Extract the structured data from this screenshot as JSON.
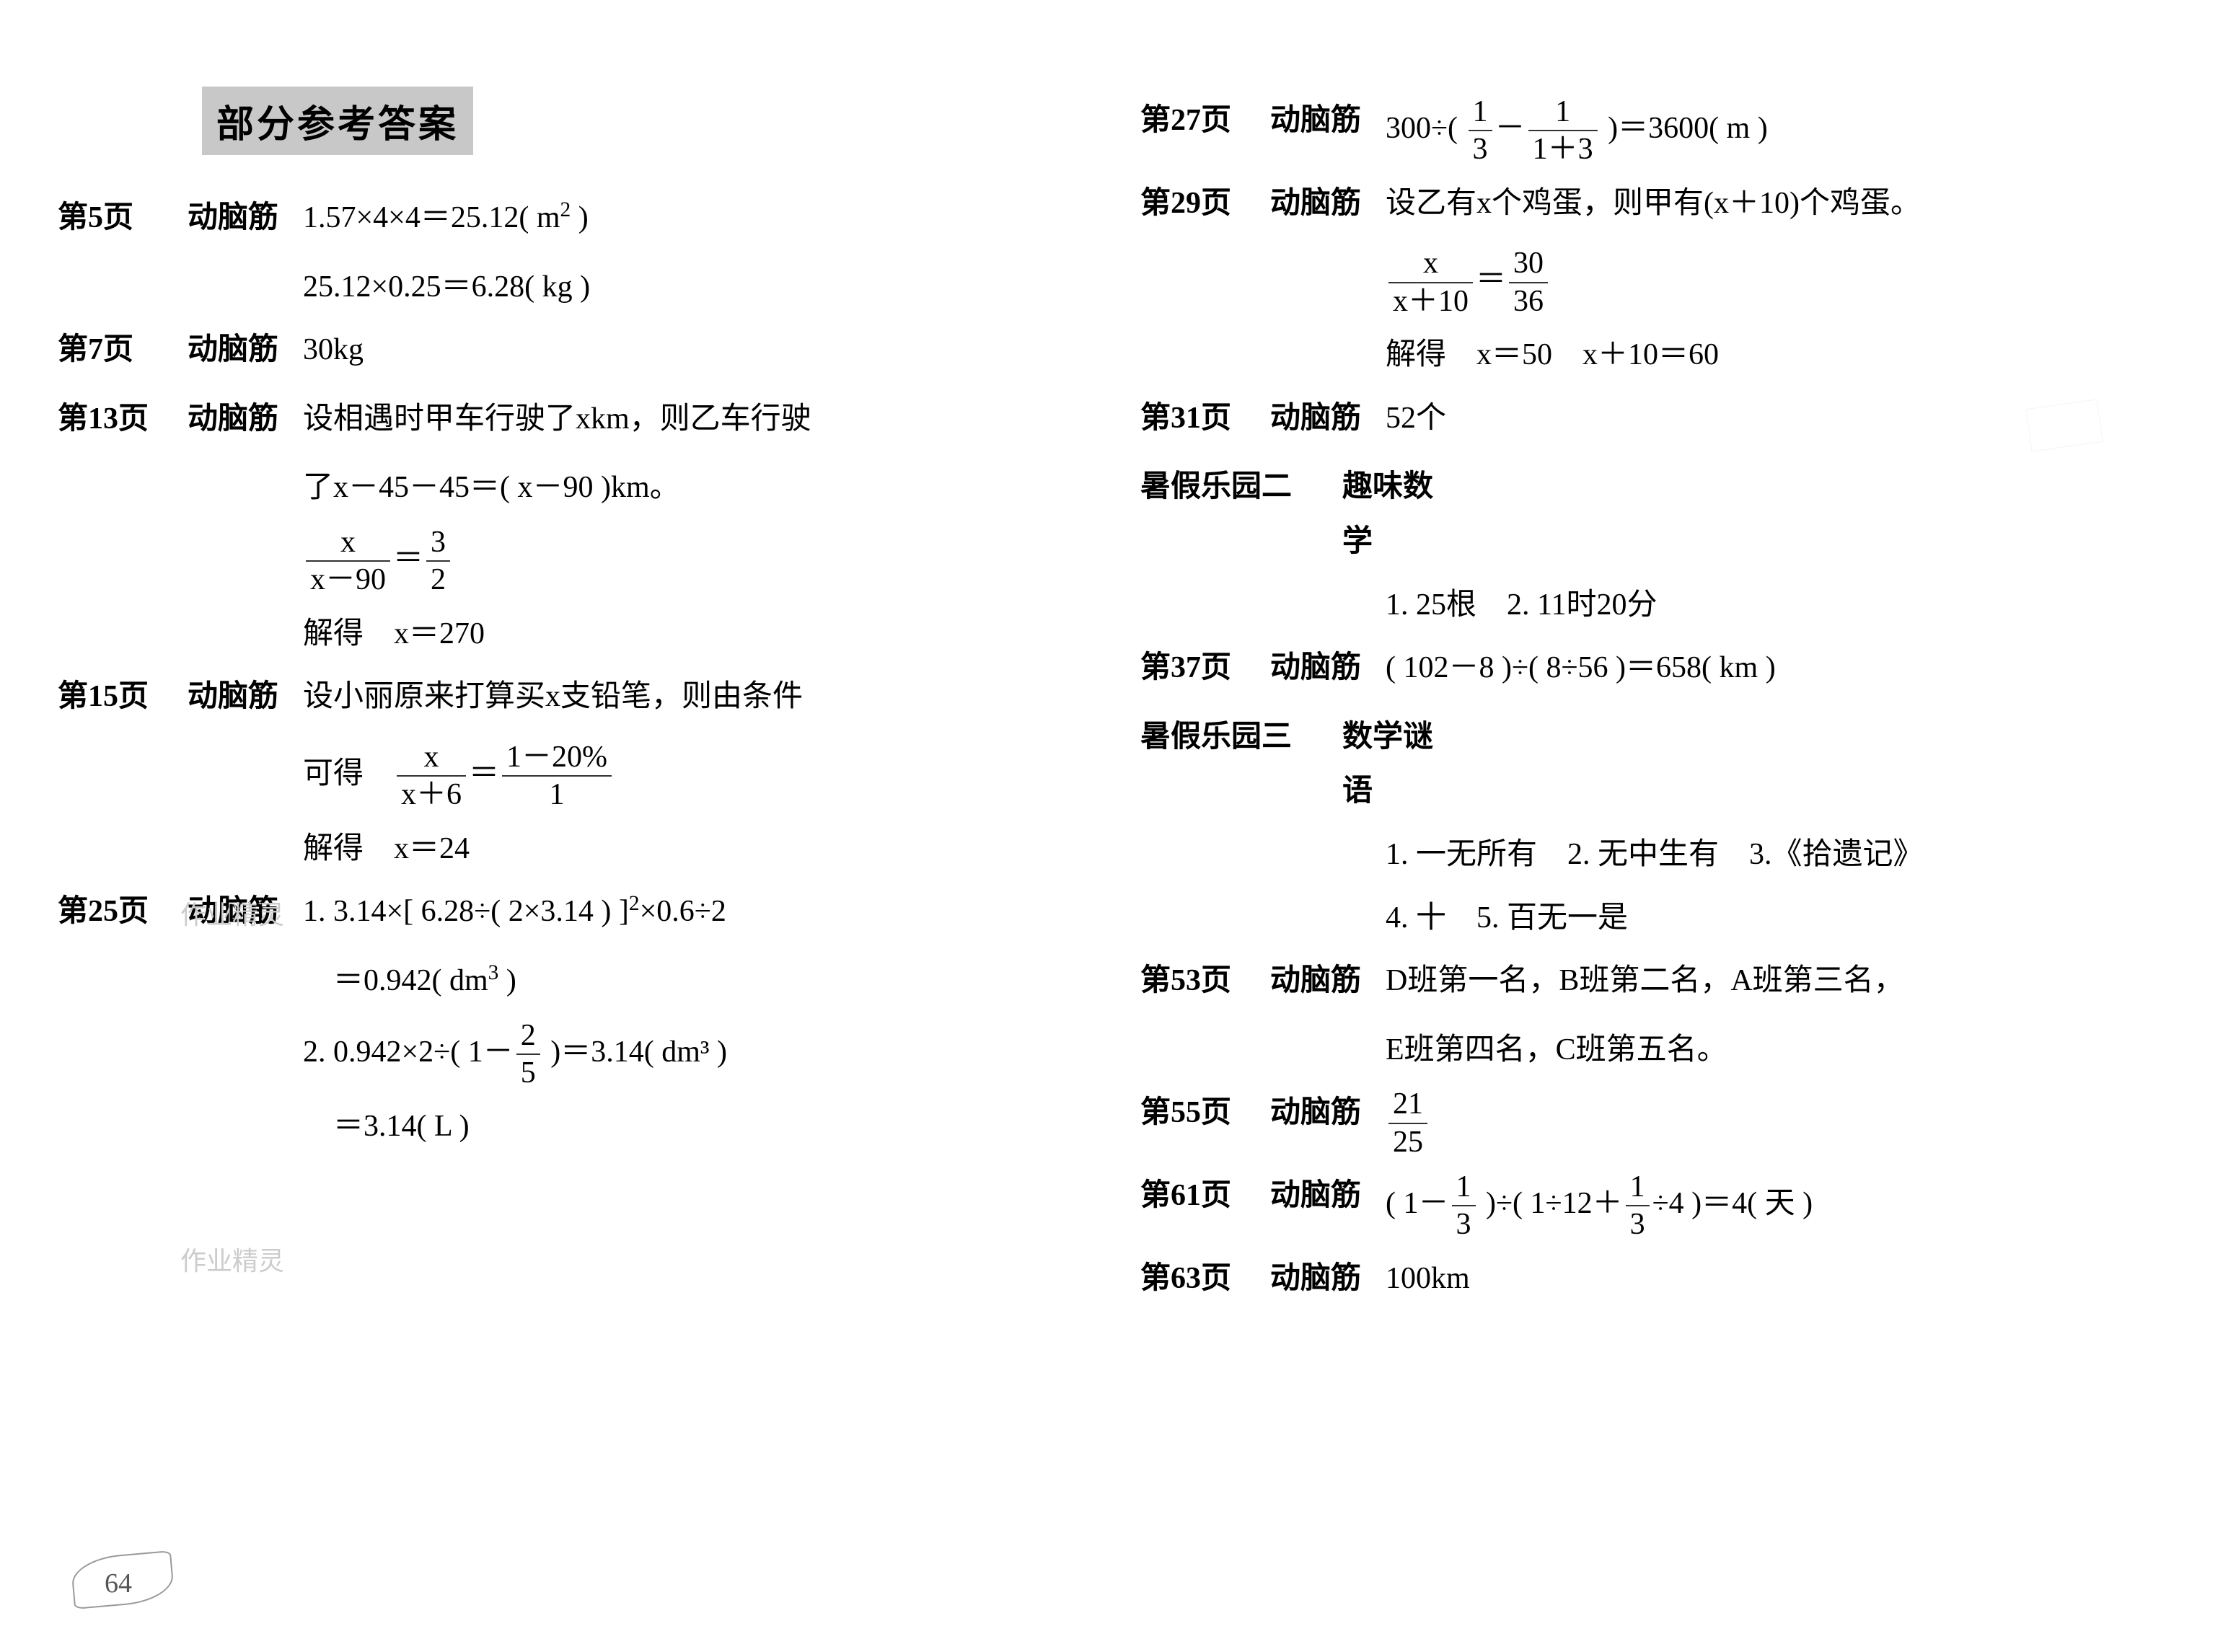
{
  "title": "部分参考答案",
  "page_number": "64",
  "watermark_text": "作业精灵",
  "left_column": [
    {
      "page": "第5页",
      "label": "动脑筋",
      "lines": [
        "1.57×4×4＝25.12( m² )"
      ]
    },
    {
      "indent": true,
      "lines": [
        "25.12×0.25＝6.28( kg )"
      ]
    },
    {
      "page": "第7页",
      "label": "动脑筋",
      "lines": [
        "30kg"
      ]
    },
    {
      "page": "第13页",
      "label": "动脑筋",
      "lines": [
        "设相遇时甲车行驶了xkm，则乙车行驶"
      ]
    },
    {
      "indent": true,
      "lines": [
        "了x－45－45＝( x－90 )km。"
      ]
    },
    {
      "indent": true,
      "frac_eq": {
        "num_l": "x",
        "den_l": "x－90",
        "num_r": "3",
        "den_r": "2"
      }
    },
    {
      "indent": true,
      "lines": [
        "解得　x＝270"
      ]
    },
    {
      "page": "第15页",
      "label": "动脑筋",
      "lines": [
        "设小丽原来打算买x支铅笔，则由条件"
      ]
    },
    {
      "indent": true,
      "prefix": "可得　",
      "frac_eq": {
        "num_l": "x",
        "den_l": "x＋6",
        "num_r": "1－20%",
        "den_r": "1"
      }
    },
    {
      "indent": true,
      "lines": [
        "解得　x＝24"
      ]
    },
    {
      "page": "第25页",
      "label": "动脑筋",
      "lines": [
        "1. 3.14×[ 6.28÷( 2×3.14 ) ]²×0.6÷2"
      ]
    },
    {
      "indent": true,
      "lines": [
        "　＝0.942( dm³ )"
      ]
    },
    {
      "indent": true,
      "prefix": "2. 0.942×2÷( 1－",
      "frac_inline": {
        "num": "2",
        "den": "5"
      },
      "suffix": " )＝3.14( dm³ )"
    },
    {
      "indent": true,
      "lines": [
        "　＝3.14( L )"
      ]
    }
  ],
  "right_column": [
    {
      "page": "第27页",
      "label": "动脑筋",
      "complex": "formula1"
    },
    {
      "page": "第29页",
      "label": "动脑筋",
      "lines": [
        "设乙有x个鸡蛋，则甲有(x＋10)个鸡蛋。"
      ]
    },
    {
      "indent": true,
      "frac_eq": {
        "num_l": "x",
        "den_l": "x＋10",
        "num_r": "30",
        "den_r": "36"
      }
    },
    {
      "indent": true,
      "lines": [
        "解得　x＝50　x＋10＝60"
      ]
    },
    {
      "page": "第31页",
      "label": "动脑筋",
      "lines": [
        "52个"
      ]
    },
    {
      "page": "暑假乐园二",
      "label": "趣味数学",
      "lines": [
        ""
      ],
      "wide": true
    },
    {
      "indent": true,
      "lines": [
        "1. 25根　2. 11时20分"
      ]
    },
    {
      "page": "第37页",
      "label": "动脑筋",
      "lines": [
        "( 102－8 )÷( 8÷56 )＝658( km )"
      ]
    },
    {
      "page": "暑假乐园三",
      "label": "数学谜语",
      "lines": [
        ""
      ],
      "wide": true
    },
    {
      "indent": true,
      "lines": [
        "1. 一无所有　2. 无中生有　3.《拾遗记》"
      ]
    },
    {
      "indent": true,
      "lines": [
        "4. 十　5. 百无一是"
      ]
    },
    {
      "page": "第53页",
      "label": "动脑筋",
      "lines": [
        "D班第一名，B班第二名，A班第三名，"
      ]
    },
    {
      "indent": true,
      "lines": [
        "E班第四名，C班第五名。"
      ]
    },
    {
      "page": "第55页",
      "label": "动脑筋",
      "frac_only": {
        "num": "21",
        "den": "25"
      }
    },
    {
      "page": "第61页",
      "label": "动脑筋",
      "complex": "formula2"
    },
    {
      "page": "第63页",
      "label": "动脑筋",
      "lines": [
        "100km"
      ]
    }
  ],
  "formula1": {
    "prefix": "300÷( ",
    "f1_num": "1",
    "f1_den": "3",
    "mid": "－",
    "f2_num": "1",
    "f2_den": "1＋3",
    "suffix": " )＝3600( m )"
  },
  "formula2": {
    "prefix": "( 1－",
    "f1_num": "1",
    "f1_den": "3",
    "mid": " )÷( 1÷12＋",
    "f2_num": "1",
    "f2_den": "3",
    "suffix": "÷4 )＝4( 天 )"
  }
}
